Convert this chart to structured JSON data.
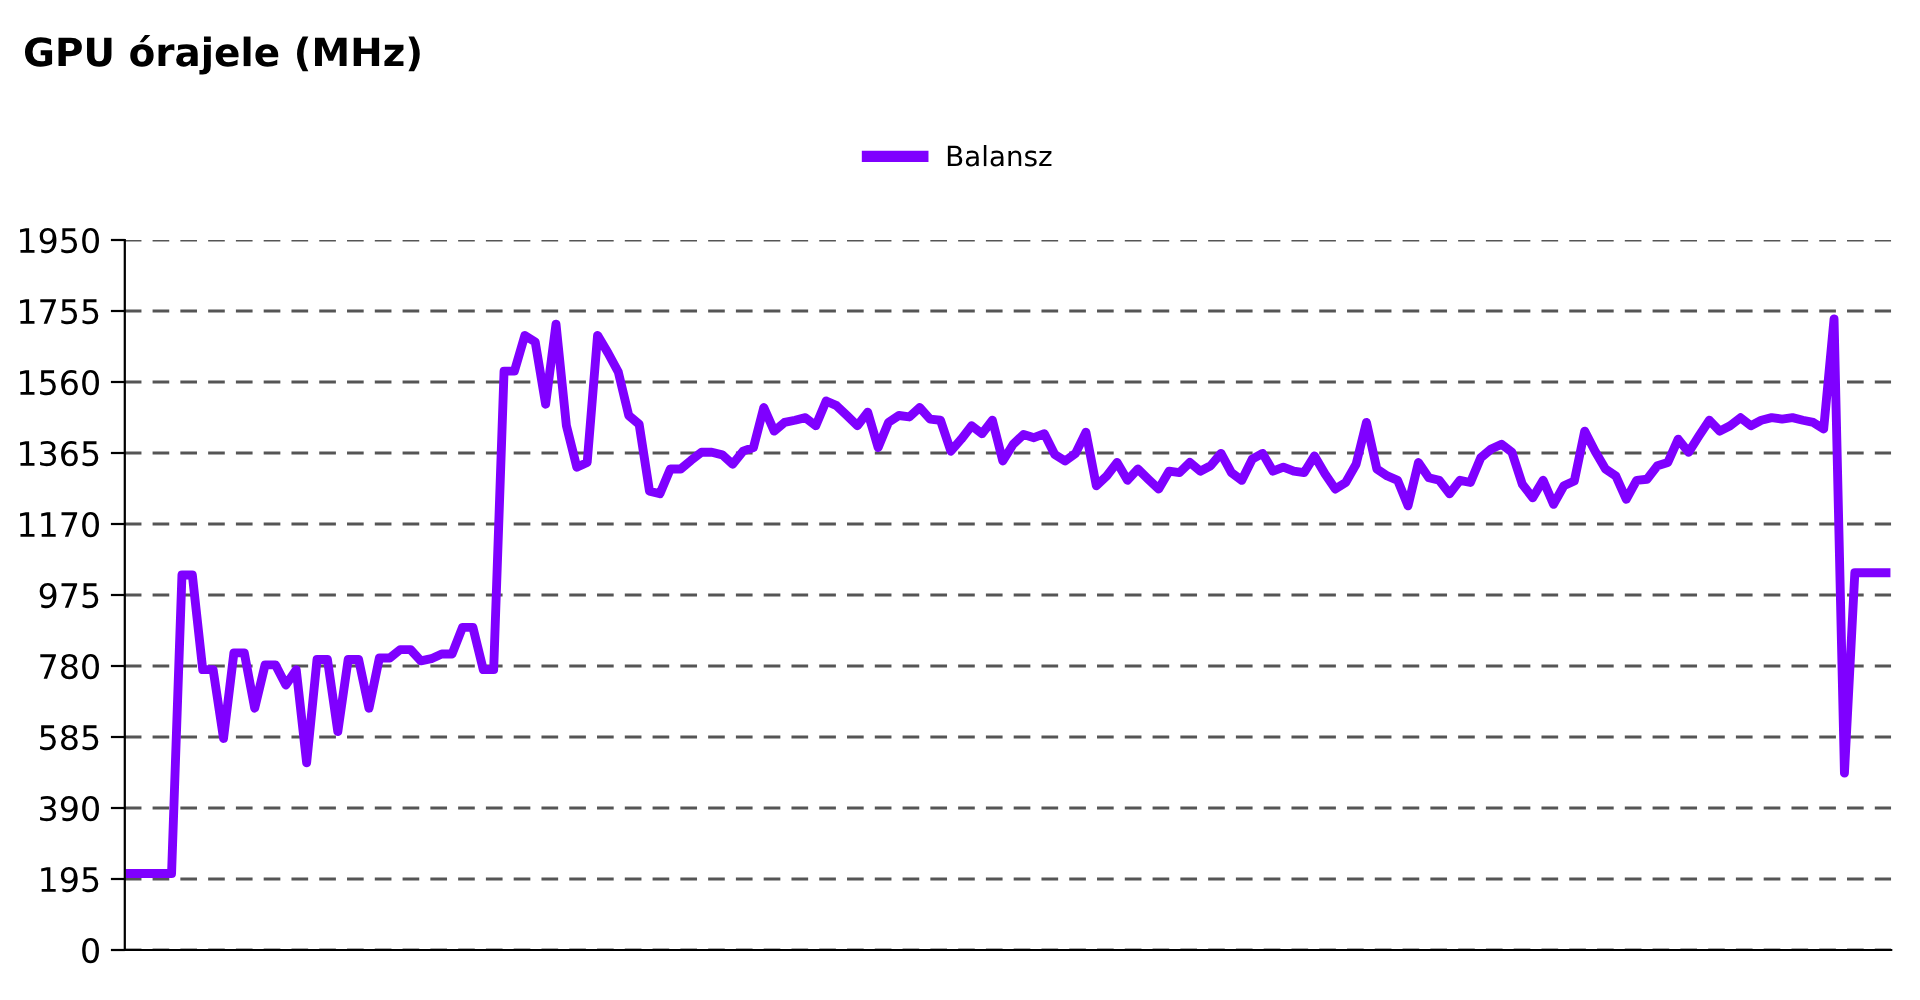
{
  "chart_data": {
    "type": "line",
    "title": "GPU órajele (MHz)",
    "categories": [
      null,
      null,
      null,
      null,
      null,
      null,
      null,
      null,
      null,
      null,
      null,
      null,
      null,
      null,
      null,
      null,
      null,
      null,
      null,
      null,
      null,
      null,
      null,
      null,
      null,
      null,
      null,
      null,
      null,
      null,
      null,
      null,
      null,
      null,
      null,
      null,
      null,
      null,
      null,
      null,
      null,
      null,
      null,
      null,
      null,
      null,
      null,
      null,
      null,
      null,
      null,
      null,
      null,
      null,
      null,
      null,
      null,
      null,
      null,
      null,
      null,
      null,
      null,
      null,
      null,
      null,
      null,
      null,
      null,
      null,
      null,
      null,
      null,
      null,
      null,
      null,
      null,
      null,
      null,
      null,
      null,
      null,
      null,
      null,
      null,
      null,
      null,
      null,
      null,
      null,
      null,
      null,
      null,
      null,
      null,
      null,
      null,
      null,
      null,
      null,
      null,
      null,
      null,
      null,
      null,
      null,
      null,
      null,
      null,
      null,
      null,
      null,
      null,
      null,
      null,
      null,
      null,
      null,
      null,
      null,
      null,
      null,
      null,
      null,
      null,
      null,
      null,
      null,
      null,
      null,
      null,
      null,
      null,
      null,
      null,
      null,
      null,
      null,
      null,
      null,
      null,
      null,
      null,
      null,
      null,
      null,
      null,
      null,
      null,
      null,
      null,
      null,
      null,
      null,
      null,
      null,
      null,
      null,
      null,
      null,
      null,
      null,
      null,
      null,
      null,
      null,
      null,
      null,
      null,
      null
    ],
    "series": [
      {
        "name": "Balansz",
        "color": "#7f00ff",
        "values": [
          210,
          210,
          210,
          210,
          210,
          1030,
          1030,
          770,
          770,
          581,
          816,
          816,
          664,
          783,
          783,
          728,
          770,
          514,
          798,
          798,
          600,
          798,
          798,
          664,
          802,
          802,
          825,
          825,
          794,
          800,
          813,
          813,
          886,
          886,
          770,
          770,
          1590,
          1590,
          1688,
          1670,
          1499,
          1719,
          1440,
          1326,
          1339,
          1688,
          1640,
          1587,
          1468,
          1444,
          1260,
          1253,
          1321,
          1321,
          1345,
          1367,
          1367,
          1360,
          1334,
          1370,
          1380,
          1490,
          1425,
          1449,
          1455,
          1462,
          1440,
          1508,
          1495,
          1468,
          1440,
          1477,
          1380,
          1449,
          1468,
          1464,
          1490,
          1458,
          1455,
          1370,
          1403,
          1440,
          1418,
          1455,
          1343,
          1389,
          1416,
          1407,
          1418,
          1361,
          1343,
          1364,
          1422,
          1275,
          1302,
          1339,
          1290,
          1321,
          1293,
          1266,
          1315,
          1311,
          1339,
          1315,
          1330,
          1364,
          1311,
          1290,
          1348,
          1364,
          1315,
          1326,
          1315,
          1311,
          1357,
          1308,
          1266,
          1284,
          1334,
          1449,
          1321,
          1302,
          1290,
          1220,
          1339,
          1297,
          1290,
          1253,
          1290,
          1284,
          1352,
          1376,
          1389,
          1367,
          1279,
          1242,
          1290,
          1224,
          1275,
          1288,
          1425,
          1370,
          1321,
          1302,
          1238,
          1290,
          1293,
          1330,
          1339,
          1403,
          1367,
          1412,
          1455,
          1425,
          1440,
          1462,
          1440,
          1455,
          1462,
          1458,
          1462,
          1455,
          1449,
          1431,
          1733,
          486,
          1036,
          1036,
          1036,
          1036
        ]
      }
    ],
    "ylim": [
      0,
      1950
    ],
    "yticks": [
      0,
      195,
      390,
      585,
      780,
      975,
      1170,
      1365,
      1560,
      1755,
      1950
    ],
    "grid": "y",
    "legend": "top",
    "tick_labels": "y",
    "marker": "none",
    "line_style": "solid"
  }
}
